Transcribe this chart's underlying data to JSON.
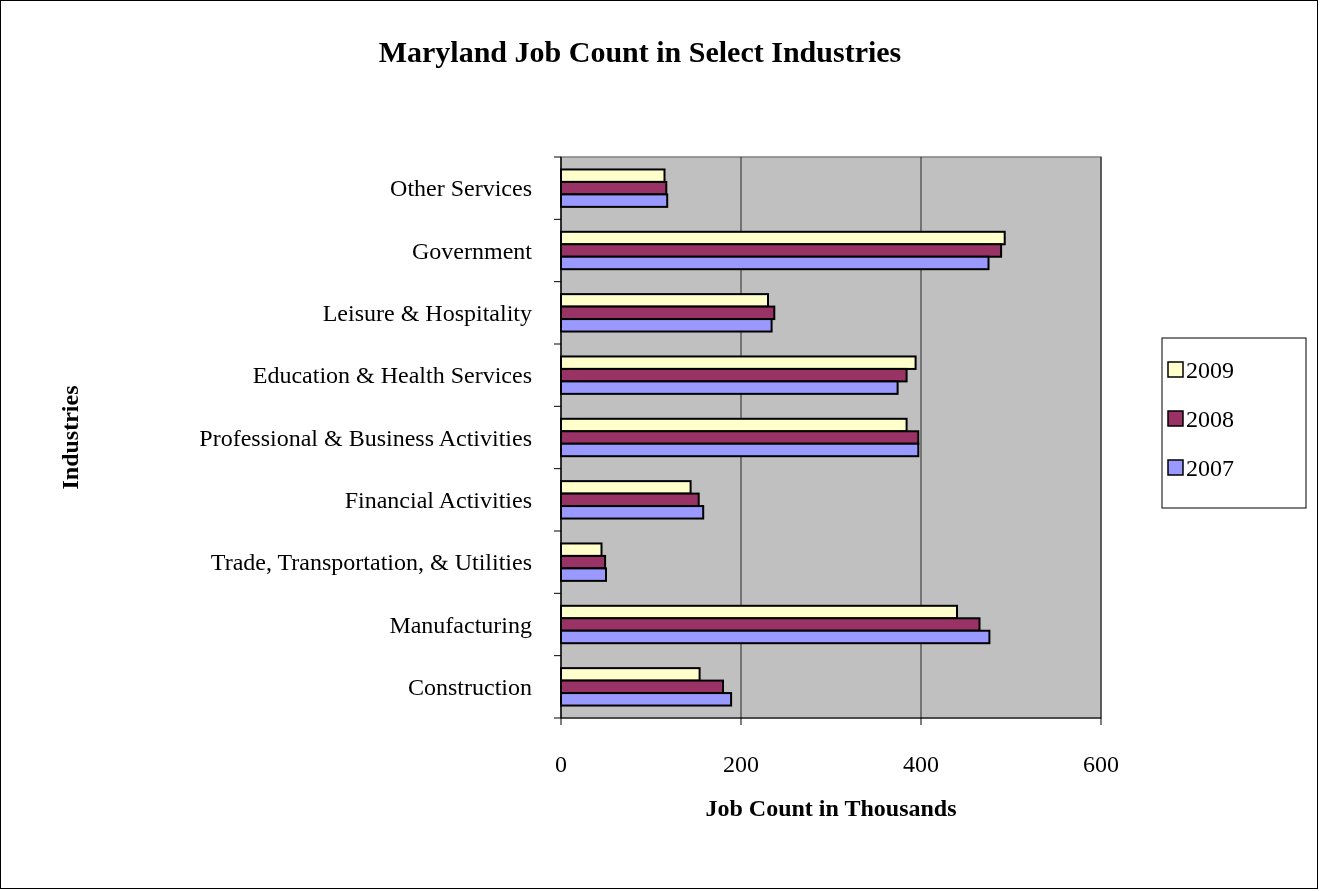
{
  "chart_data": {
    "type": "bar",
    "orientation": "horizontal",
    "title": "Maryland Job Count in Select Industries",
    "xlabel": "Job Count in Thousands",
    "ylabel": "Industries",
    "categories": [
      "Other Services",
      "Government",
      "Leisure & Hospitality",
      "Education & Health Services",
      "Professional & Business Activities",
      "Financial Activities",
      "Trade, Transportation, & Utilities",
      "Manufacturing",
      "Construction"
    ],
    "series": [
      {
        "name": "2009",
        "color": "#ffffcc",
        "values": [
          115,
          493,
          230,
          394,
          384,
          144,
          45,
          440,
          154
        ]
      },
      {
        "name": "2008",
        "color": "#993366",
        "values": [
          117,
          489,
          237,
          384,
          397,
          153,
          49,
          465,
          180
        ]
      },
      {
        "name": "2007",
        "color": "#9999ff",
        "values": [
          118,
          475,
          234,
          374,
          397,
          158,
          50,
          476,
          189
        ]
      }
    ],
    "xlim": [
      0,
      600
    ],
    "xticks": [
      0,
      200,
      400,
      600
    ],
    "grid": "x",
    "legend": "right"
  }
}
